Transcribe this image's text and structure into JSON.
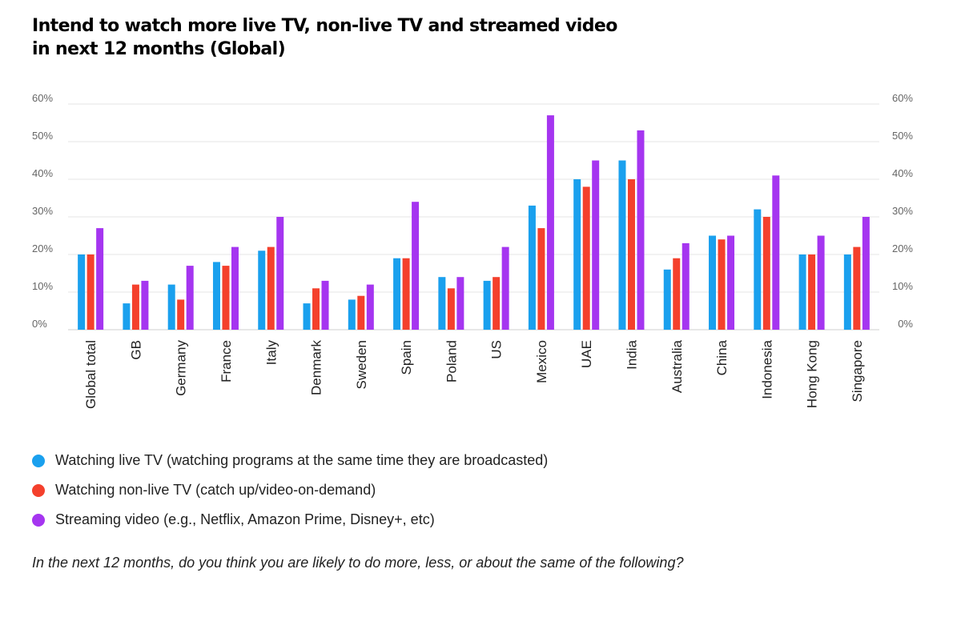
{
  "title_lines": [
    "Intend to watch more live TV, non-live TV and streamed video",
    "in next 12 months (Global)"
  ],
  "chart_data": {
    "type": "bar",
    "title": "Intend to watch more live TV, non-live TV and streamed video in next 12 months (Global)",
    "xlabel": "",
    "ylabel": "",
    "ylim": [
      0,
      60
    ],
    "yticks": [
      "0%",
      "10%",
      "20%",
      "30%",
      "40%",
      "50%",
      "60%"
    ],
    "grid": true,
    "categories": [
      "Global total",
      "GB",
      "Germany",
      "France",
      "Italy",
      "Denmark",
      "Sweden",
      "Spain",
      "Poland",
      "US",
      "Mexico",
      "UAE",
      "India",
      "Australia",
      "China",
      "Indonesia",
      "Hong Kong",
      "Singapore"
    ],
    "series": [
      {
        "name": "Watching live TV (watching programs at the same time they are broadcasted)",
        "color": "#1aa0ee",
        "values": [
          20,
          7,
          12,
          18,
          21,
          7,
          8,
          19,
          14,
          13,
          33,
          40,
          45,
          16,
          25,
          32,
          20,
          20
        ]
      },
      {
        "name": "Watching non-live TV (catch up/video-on-demand)",
        "color": "#f4402c",
        "values": [
          20,
          12,
          8,
          17,
          22,
          11,
          9,
          19,
          11,
          14,
          27,
          38,
          40,
          19,
          24,
          30,
          20,
          22
        ]
      },
      {
        "name": "Streaming video (e.g., Netflix, Amazon Prime, Disney+, etc)",
        "color": "#a535f0",
        "values": [
          27,
          13,
          17,
          22,
          30,
          13,
          12,
          34,
          14,
          22,
          57,
          45,
          53,
          23,
          25,
          41,
          25,
          30
        ]
      }
    ]
  },
  "note": "In the next 12 months, do you think you are likely to do more, less, or about the same of the following?"
}
